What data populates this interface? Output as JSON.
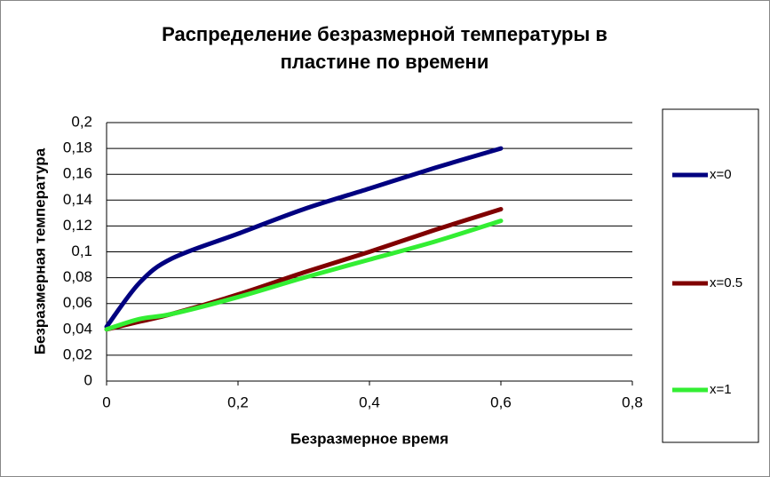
{
  "chart_data": {
    "type": "line",
    "title": "Распределение безразмерной температуры в пластине по времени",
    "x_label": "Безразмерное время",
    "y_label": "Безразмерная температура",
    "x": [
      0,
      0.05,
      0.1,
      0.2,
      0.3,
      0.4,
      0.5,
      0.6
    ],
    "series": [
      {
        "name": "x=0",
        "color": "#000080",
        "values": [
          0.042,
          0.076,
          0.095,
          0.114,
          0.133,
          0.149,
          0.165,
          0.18
        ]
      },
      {
        "name": "x=0.5",
        "color": "#800000",
        "values": [
          0.04,
          0.046,
          0.052,
          0.067,
          0.084,
          0.1,
          0.117,
          0.133
        ]
      },
      {
        "name": "x=1",
        "color": "#33ee33",
        "values": [
          0.04,
          0.048,
          0.052,
          0.065,
          0.08,
          0.094,
          0.108,
          0.124
        ]
      }
    ],
    "xlim": [
      0,
      0.8
    ],
    "xticks": [
      0,
      {
        "value": 0.2,
        "label": "0,2"
      },
      {
        "value": 0.4,
        "label": "0,4"
      },
      {
        "value": 0.6,
        "label": "0,6"
      },
      {
        "value": 0.8,
        "label": "0,8"
      }
    ],
    "ylim": [
      0,
      0.2
    ],
    "yticks": [
      0,
      {
        "value": 0.02,
        "label": "0,02"
      },
      {
        "value": 0.04,
        "label": "0,04"
      },
      {
        "value": 0.06,
        "label": "0,06"
      },
      {
        "value": 0.08,
        "label": "0,08"
      },
      {
        "value": 0.1,
        "label": "0,1"
      },
      {
        "value": 0.12,
        "label": "0,12"
      },
      {
        "value": 0.14,
        "label": "0,14"
      },
      {
        "value": 0.16,
        "label": "0,16"
      },
      {
        "value": 0.18,
        "label": "0,18"
      },
      {
        "value": 0.2,
        "label": "0,2"
      }
    ],
    "grid": true,
    "legend": "right"
  }
}
